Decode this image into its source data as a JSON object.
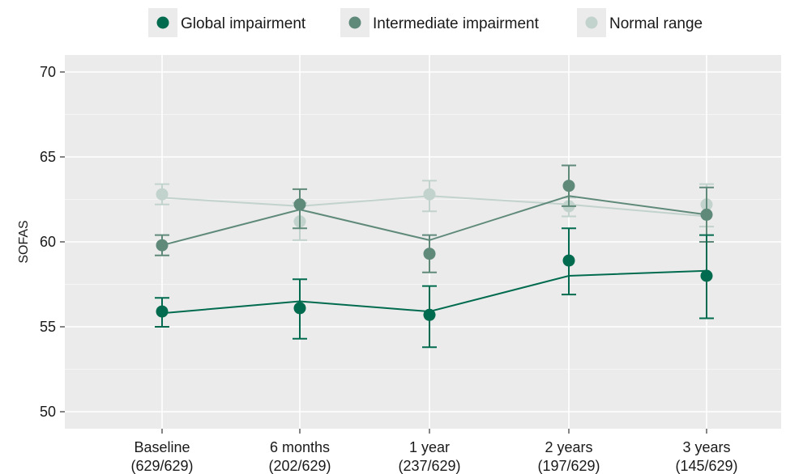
{
  "chart_data": {
    "type": "line",
    "title": "",
    "xlabel": "",
    "ylabel": "SOFAS",
    "ylim": [
      49,
      71
    ],
    "yticks": [
      50,
      55,
      60,
      65,
      70
    ],
    "grid": true,
    "legend_position": "top",
    "categories": [
      {
        "label": "Baseline",
        "sublabel": "(629/629)"
      },
      {
        "label": "6 months",
        "sublabel": "(202/629)"
      },
      {
        "label": "1 year",
        "sublabel": "(237/629)"
      },
      {
        "label": "2 years",
        "sublabel": "(197/629)"
      },
      {
        "label": "3 years",
        "sublabel": "(145/629)"
      }
    ],
    "series": [
      {
        "name": "Normal range",
        "color": "#c2d2cc",
        "points": [
          62.8,
          61.2,
          62.8,
          62.1,
          62.2
        ],
        "line": [
          62.6,
          62.1,
          62.7,
          62.2,
          61.5
        ],
        "error_low": [
          62.2,
          60.1,
          61.8,
          61.5,
          60.9
        ],
        "error_high": [
          63.4,
          62.3,
          63.6,
          62.6,
          63.4
        ]
      },
      {
        "name": "Intermediate impairment",
        "color": "#5f8a7a",
        "points": [
          59.8,
          62.2,
          59.3,
          63.3,
          61.6
        ],
        "line": [
          59.8,
          61.9,
          60.1,
          62.7,
          61.6
        ],
        "error_low": [
          59.2,
          60.8,
          58.2,
          62.1,
          60.0
        ],
        "error_high": [
          60.4,
          63.1,
          60.4,
          64.5,
          63.2
        ]
      },
      {
        "name": "Global impairment",
        "color": "#006b4e",
        "points": [
          55.9,
          56.1,
          55.7,
          58.9,
          58.0
        ],
        "line": [
          55.8,
          56.5,
          55.9,
          58.0,
          58.3
        ],
        "error_low": [
          55.0,
          54.3,
          53.8,
          56.9,
          55.5
        ],
        "error_high": [
          56.7,
          57.8,
          57.4,
          60.8,
          60.4
        ]
      }
    ]
  }
}
